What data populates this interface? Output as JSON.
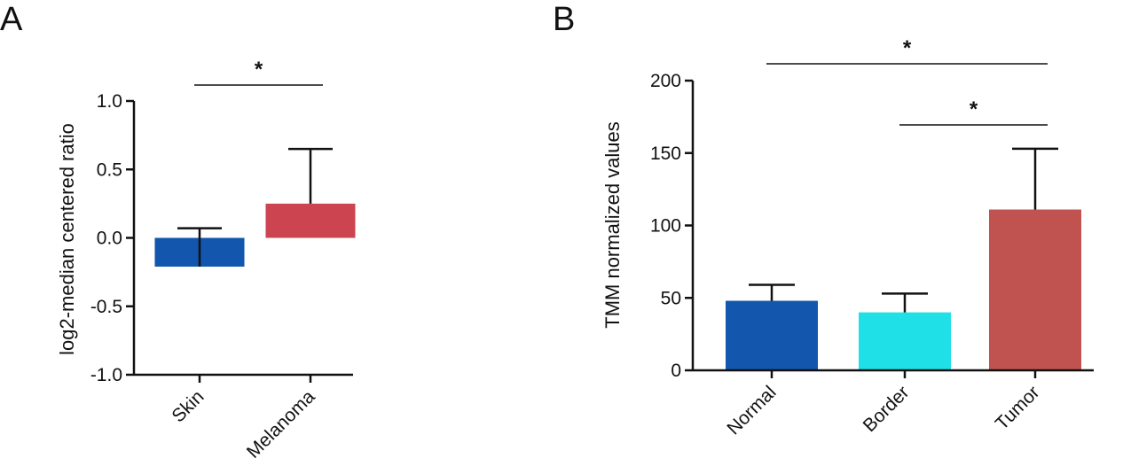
{
  "chart_data": [
    {
      "panel": "A",
      "type": "bar",
      "categories": [
        "Skin",
        "Melanoma"
      ],
      "values": [
        -0.21,
        0.25
      ],
      "error_upper": [
        0.28,
        0.4
      ],
      "colors": [
        "#1256ae",
        "#cc4450"
      ],
      "ylabel": "log2-median centered ratio",
      "ylim": [
        -1.0,
        1.0
      ],
      "yticks": [
        1.0,
        0.5,
        0.0,
        -0.5,
        -1.0
      ],
      "ytick_labels": [
        "1.0",
        "0.5",
        "0.0",
        "-0.5",
        "-1.0"
      ],
      "significance": [
        {
          "from": "Skin",
          "to": "Melanoma",
          "label": "*"
        }
      ]
    },
    {
      "panel": "B",
      "type": "bar",
      "categories": [
        "Normal",
        "Border",
        "Tumor"
      ],
      "values": [
        48,
        40,
        111
      ],
      "error_upper": [
        11,
        13,
        42
      ],
      "colors": [
        "#1256ae",
        "#1ee0e6",
        "#c0524f"
      ],
      "ylabel": "TMM normalized values",
      "ylim": [
        0,
        200
      ],
      "yticks": [
        200,
        150,
        100,
        50,
        0
      ],
      "ytick_labels": [
        "200",
        "150",
        "100",
        "50",
        "0"
      ],
      "significance": [
        {
          "from": "Normal",
          "to": "Tumor",
          "label": "*"
        },
        {
          "from": "Border",
          "to": "Tumor",
          "label": "*"
        }
      ]
    }
  ]
}
